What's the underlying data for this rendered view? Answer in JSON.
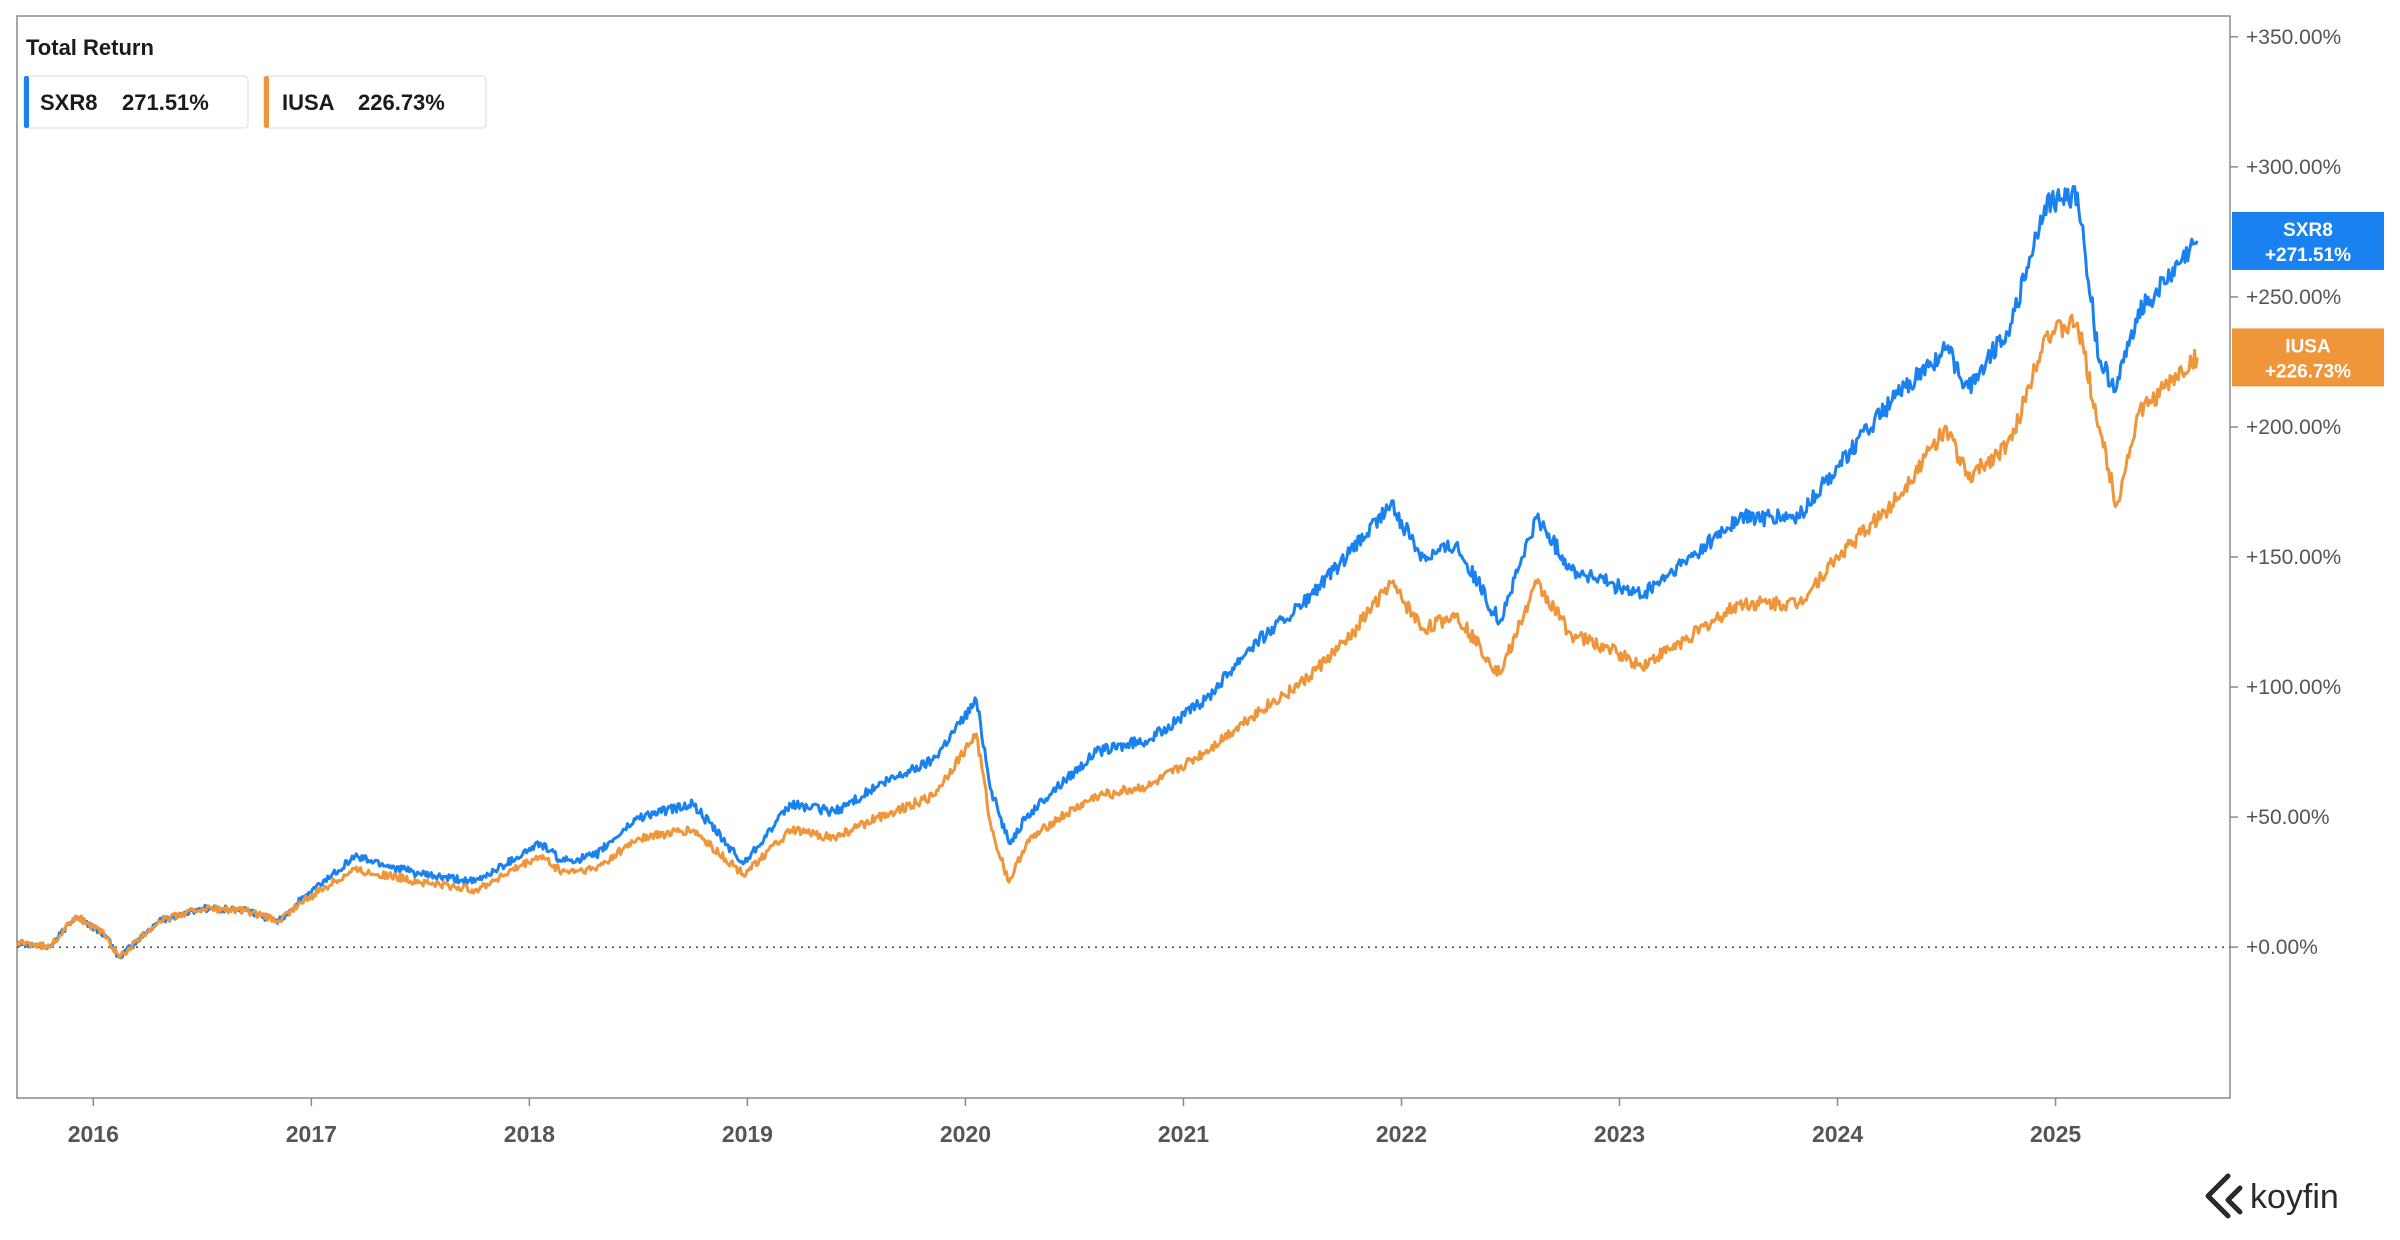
{
  "brand": {
    "name": "koyfin",
    "icon": "koyfin-logo-icon"
  },
  "chart_data": {
    "type": "line",
    "title": "Total Return",
    "xlabel": "",
    "ylabel": "",
    "x_range": [
      2015.65,
      2025.8
    ],
    "ylim": [
      -58,
      358
    ],
    "y_ticks": [
      0,
      50,
      100,
      150,
      200,
      250,
      300,
      350
    ],
    "y_tick_labels": [
      "+0.00%",
      "+50.00%",
      "+100.00%",
      "+150.00%",
      "+200.00%",
      "+250.00%",
      "+300.00%",
      "+350.00%"
    ],
    "x_ticks": [
      2016,
      2017,
      2018,
      2019,
      2020,
      2021,
      2022,
      2023,
      2024,
      2025
    ],
    "x_tick_labels": [
      "2016",
      "2017",
      "2018",
      "2019",
      "2020",
      "2021",
      "2022",
      "2023",
      "2024",
      "2025"
    ],
    "baseline": 0,
    "grid": false,
    "legend_position": "top-left",
    "series": [
      {
        "name": "SXR8",
        "color": "#1a82f0",
        "legend_value": "271.51%",
        "tag_line1": "SXR8",
        "tag_line2": "+271.51%",
        "last_value": 271.51,
        "x": [
          2015.65,
          2015.8,
          2015.92,
          2016.05,
          2016.12,
          2016.3,
          2016.5,
          2016.7,
          2016.85,
          2016.95,
          2017.2,
          2017.5,
          2017.75,
          2018.05,
          2018.15,
          2018.3,
          2018.5,
          2018.75,
          2018.98,
          2019.2,
          2019.4,
          2019.6,
          2019.85,
          2020.05,
          2020.12,
          2020.2,
          2020.28,
          2020.4,
          2020.6,
          2020.85,
          2021.1,
          2021.3,
          2021.55,
          2021.75,
          2021.95,
          2022.1,
          2022.25,
          2022.45,
          2022.62,
          2022.78,
          2022.95,
          2023.1,
          2023.3,
          2023.55,
          2023.82,
          2024.0,
          2024.25,
          2024.5,
          2024.6,
          2024.8,
          2024.95,
          2025.1,
          2025.2,
          2025.28,
          2025.38,
          2025.5,
          2025.65
        ],
        "values": [
          2,
          0,
          12,
          5,
          -4,
          10,
          15,
          14,
          10,
          18,
          35,
          28,
          25,
          40,
          33,
          35,
          50,
          55,
          32,
          55,
          52,
          62,
          72,
          95,
          60,
          40,
          50,
          60,
          75,
          80,
          95,
          115,
          132,
          150,
          170,
          150,
          155,
          125,
          165,
          145,
          140,
          135,
          148,
          165,
          165,
          185,
          210,
          230,
          215,
          240,
          285,
          290,
          225,
          215,
          245,
          255,
          271.51
        ]
      },
      {
        "name": "IUSA",
        "color": "#f0963a",
        "legend_value": "226.73%",
        "tag_line1": "IUSA",
        "tag_line2": "+226.73%",
        "last_value": 226.73,
        "x": [
          2015.65,
          2015.8,
          2015.92,
          2016.05,
          2016.12,
          2016.3,
          2016.5,
          2016.7,
          2016.85,
          2016.95,
          2017.2,
          2017.5,
          2017.75,
          2018.05,
          2018.15,
          2018.3,
          2018.5,
          2018.75,
          2018.98,
          2019.2,
          2019.4,
          2019.6,
          2019.85,
          2020.05,
          2020.12,
          2020.2,
          2020.28,
          2020.4,
          2020.6,
          2020.85,
          2021.1,
          2021.3,
          2021.55,
          2021.75,
          2021.95,
          2022.1,
          2022.25,
          2022.45,
          2022.62,
          2022.78,
          2022.95,
          2023.1,
          2023.3,
          2023.55,
          2023.82,
          2024.0,
          2024.25,
          2024.5,
          2024.6,
          2024.8,
          2024.95,
          2025.1,
          2025.2,
          2025.28,
          2025.38,
          2025.5,
          2025.65
        ],
        "values": [
          2,
          0,
          12,
          5,
          -4,
          10,
          15,
          14,
          10,
          17,
          30,
          25,
          22,
          35,
          29,
          30,
          42,
          45,
          28,
          45,
          42,
          50,
          58,
          82,
          45,
          25,
          40,
          48,
          58,
          62,
          75,
          88,
          102,
          118,
          140,
          122,
          128,
          105,
          140,
          120,
          115,
          108,
          118,
          132,
          132,
          150,
          170,
          200,
          180,
          195,
          235,
          240,
          200,
          170,
          205,
          215,
          226.73
        ]
      }
    ]
  }
}
